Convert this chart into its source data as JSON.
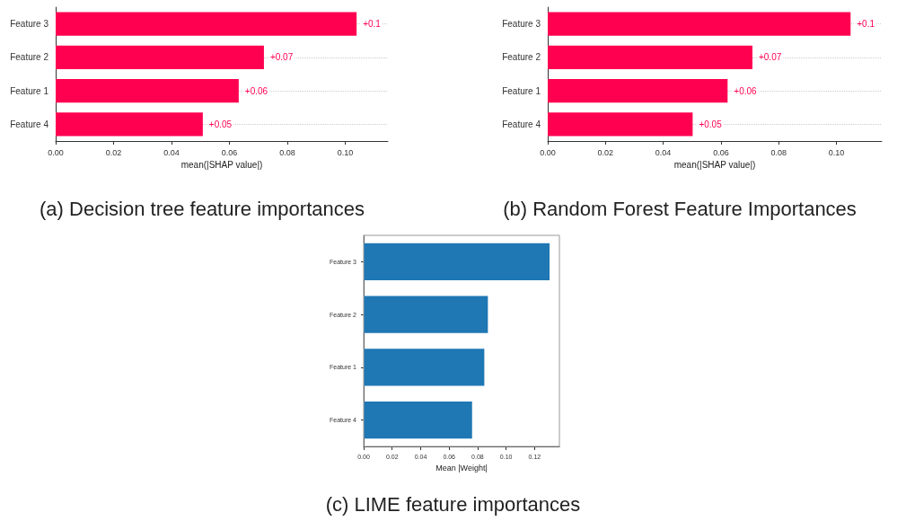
{
  "chart_data": [
    {
      "type": "bar",
      "orientation": "horizontal",
      "title": "(a) Decision tree feature importances",
      "xlabel": "mean(|SHAP value|)",
      "categories": [
        "Feature 3",
        "Feature 2",
        "Feature 1",
        "Feature 4"
      ],
      "values": [
        0.1039,
        0.0719,
        0.0632,
        0.0508
      ],
      "value_labels": [
        "+0.1",
        "+0.07",
        "+0.06",
        "+0.05"
      ],
      "color": "#ff0051",
      "xlim": [
        0,
        0.1147
      ],
      "xticks": [
        {
          "value": 0,
          "label": "0.00"
        },
        {
          "value": 0.02,
          "label": "0.02"
        },
        {
          "value": 0.04,
          "label": "0.04"
        },
        {
          "value": 0.06,
          "label": "0.06"
        },
        {
          "value": 0.08,
          "label": "0.08"
        },
        {
          "value": 0.1,
          "label": "0.10"
        }
      ],
      "grid": "y"
    },
    {
      "type": "bar",
      "orientation": "horizontal",
      "title": "(b) Random Forest Feature Importances",
      "xlabel": "mean(|SHAP value|)",
      "categories": [
        "Feature 3",
        "Feature 2",
        "Feature 1",
        "Feature 4"
      ],
      "values": [
        0.1049,
        0.0709,
        0.0623,
        0.0502
      ],
      "value_labels": [
        "+0.1",
        "+0.07",
        "+0.06",
        "+0.05"
      ],
      "color": "#ff0051",
      "xlim": [
        0,
        0.1157
      ],
      "xticks": [
        {
          "value": 0,
          "label": "0.00"
        },
        {
          "value": 0.02,
          "label": "0.02"
        },
        {
          "value": 0.04,
          "label": "0.04"
        },
        {
          "value": 0.06,
          "label": "0.06"
        },
        {
          "value": 0.08,
          "label": "0.08"
        },
        {
          "value": 0.1,
          "label": "0.10"
        }
      ],
      "grid": "y"
    },
    {
      "type": "bar",
      "orientation": "horizontal",
      "title": "(c) LIME feature importances",
      "xlabel": "Mean |Weight|",
      "categories": [
        "Feature 3",
        "Feature 2",
        "Feature 1",
        "Feature 4"
      ],
      "values": [
        0.1305,
        0.0872,
        0.0847,
        0.0761
      ],
      "color": "#1f77b4",
      "xlim": [
        0,
        0.1374
      ],
      "xticks": [
        {
          "value": 0,
          "label": "0.00"
        },
        {
          "value": 0.02,
          "label": "0.02"
        },
        {
          "value": 0.04,
          "label": "0.04"
        },
        {
          "value": 0.06,
          "label": "0.06"
        },
        {
          "value": 0.08,
          "label": "0.08"
        },
        {
          "value": 0.1,
          "label": "0.10"
        },
        {
          "value": 0.12,
          "label": "0.12"
        }
      ]
    }
  ]
}
